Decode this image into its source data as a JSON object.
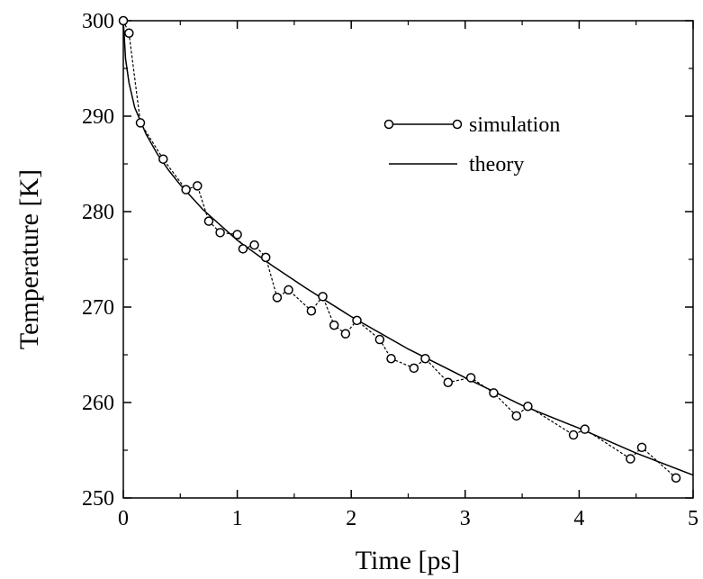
{
  "chart_data": {
    "type": "line",
    "title": "",
    "xlabel": "Time [ps]",
    "ylabel": "Temperature [K]",
    "xlim": [
      0,
      5
    ],
    "ylim": [
      250,
      300
    ],
    "x_ticks": [
      0,
      1,
      2,
      3,
      4,
      5
    ],
    "y_ticks": [
      250,
      260,
      270,
      280,
      290,
      300
    ],
    "grid": false,
    "legend_position": "top-right",
    "series": [
      {
        "name": "simulation",
        "style": "line-with-open-circles",
        "x": [
          0.0,
          0.05,
          0.15,
          0.35,
          0.55,
          0.65,
          0.75,
          0.85,
          1.0,
          1.05,
          1.15,
          1.25,
          1.35,
          1.45,
          1.65,
          1.75,
          1.85,
          1.95,
          2.05,
          2.25,
          2.35,
          2.55,
          2.65,
          2.85,
          3.05,
          3.25,
          3.45,
          3.55,
          3.95,
          4.05,
          4.45,
          4.55,
          4.85
        ],
        "y": [
          300.0,
          298.7,
          289.3,
          285.5,
          282.3,
          282.7,
          279.0,
          277.8,
          277.6,
          276.1,
          276.5,
          275.2,
          271.0,
          271.8,
          269.6,
          271.1,
          268.1,
          267.2,
          268.6,
          266.6,
          264.6,
          263.6,
          264.6,
          262.1,
          262.6,
          261.0,
          258.6,
          259.6,
          256.6,
          257.2,
          254.1,
          255.3,
          252.1
        ]
      },
      {
        "name": "theory",
        "style": "solid-line",
        "x": [
          0.0,
          0.02,
          0.05,
          0.1,
          0.2,
          0.3,
          0.4,
          0.5,
          0.7,
          1.0,
          1.3,
          1.6,
          2.0,
          2.5,
          3.0,
          3.5,
          4.0,
          4.5,
          5.0
        ],
        "y": [
          300.0,
          296.0,
          293.5,
          290.9,
          288.1,
          286.0,
          284.3,
          282.8,
          280.2,
          277.0,
          274.4,
          272.0,
          269.0,
          265.6,
          262.6,
          259.7,
          257.3,
          254.7,
          252.4
        ]
      }
    ]
  },
  "colors": {
    "line": "#000000",
    "marker_fill": "#ffffff",
    "background": "#ffffff"
  }
}
